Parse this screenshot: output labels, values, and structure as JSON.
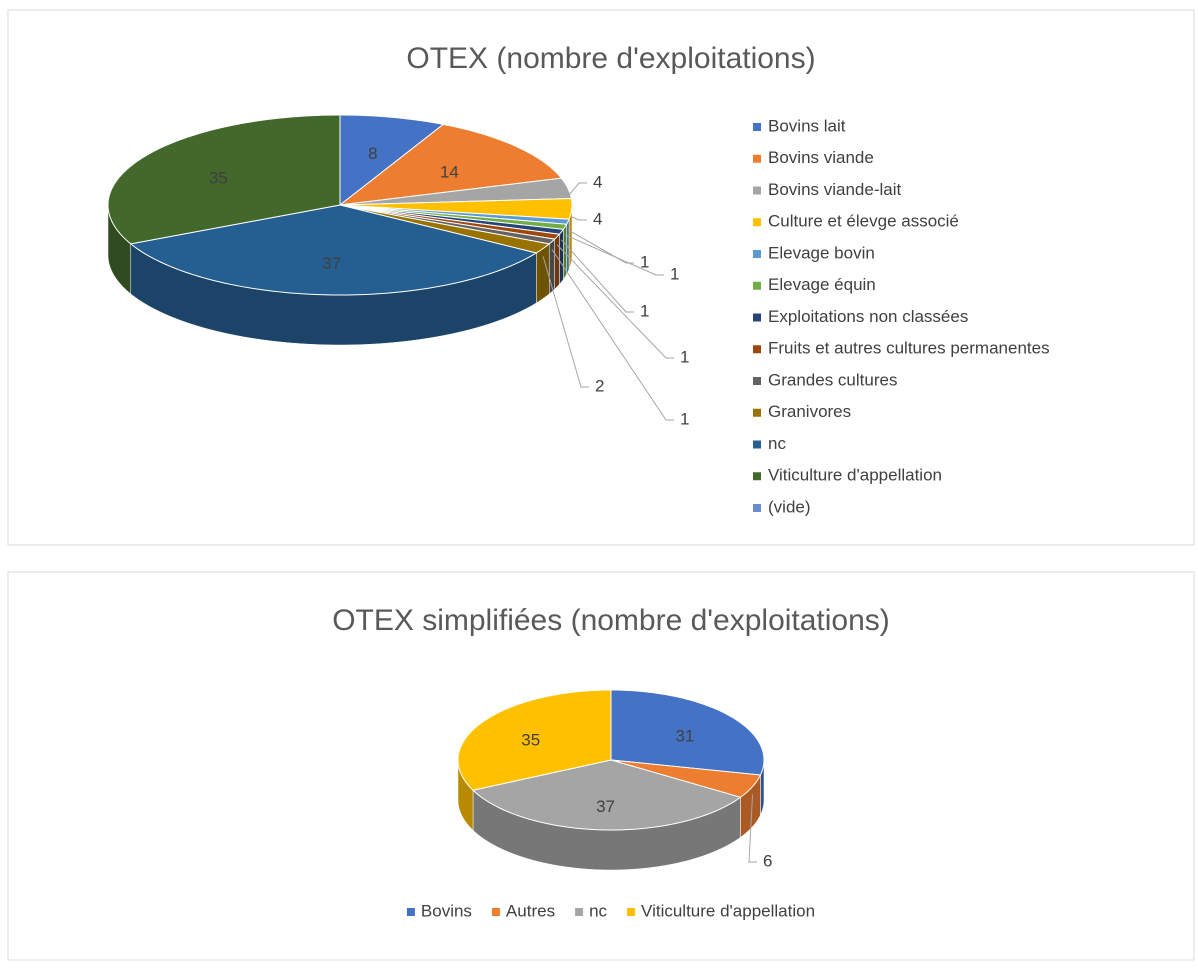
{
  "chart_data": [
    {
      "type": "pie",
      "title": "OTEX (nombre d'exploitations)",
      "categories": [
        "Bovins lait",
        "Bovins viande",
        "Bovins viande-lait",
        "Culture et élevge associé",
        "Elevage bovin",
        "Elevage équin",
        "Exploitations non classées",
        "Fruits et autres cultures permanentes",
        "Grandes cultures",
        "Granivores",
        "nc",
        "Viticulture d'appellation",
        "(vide)"
      ],
      "values": [
        8,
        14,
        4,
        4,
        1,
        1,
        1,
        1,
        1,
        2,
        37,
        35,
        0
      ],
      "colors": [
        "#4472c4",
        "#ed7d31",
        "#a5a5a5",
        "#ffc000",
        "#5b9bd5",
        "#70ad47",
        "#264478",
        "#9e480e",
        "#636363",
        "#997300",
        "#255e91",
        "#43682b",
        "#698ed0"
      ],
      "legend": "right"
    },
    {
      "type": "pie",
      "title": "OTEX simplifiées (nombre d'exploitations)",
      "categories": [
        "Bovins",
        "Autres",
        "nc",
        "Viticulture d'appellation"
      ],
      "values": [
        31,
        6,
        37,
        35
      ],
      "colors": [
        "#4472c4",
        "#ed7d31",
        "#a5a5a5",
        "#ffc000"
      ],
      "legend": "bottom"
    }
  ]
}
